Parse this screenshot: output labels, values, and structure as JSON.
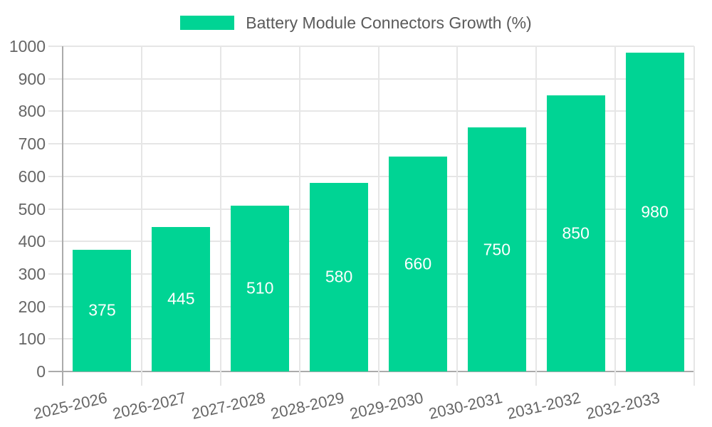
{
  "chart_data": {
    "type": "bar",
    "series_name": "Battery Module Connectors Growth (%)",
    "categories": [
      "2025-2026",
      "2026-2027",
      "2027-2028",
      "2028-2029",
      "2029-2030",
      "2030-2031",
      "2031-2032",
      "2032-2033"
    ],
    "values": [
      375,
      445,
      510,
      580,
      660,
      750,
      850,
      980
    ],
    "ylim": [
      0,
      1000
    ],
    "yticks": [
      0,
      100,
      200,
      300,
      400,
      500,
      600,
      700,
      800,
      900,
      1000
    ],
    "grid": true,
    "legend_position": "top-center",
    "value_label_position": "inside-center",
    "xtick_angle_deg": -13,
    "colors": {
      "bar": "#00d494",
      "value_label": "#ffffff",
      "tick_label": "#666666",
      "legend_label": "#5a5a5a",
      "gridline": "#e6e6e6",
      "axis_line": "#ababab",
      "background": "#ffffff"
    }
  }
}
